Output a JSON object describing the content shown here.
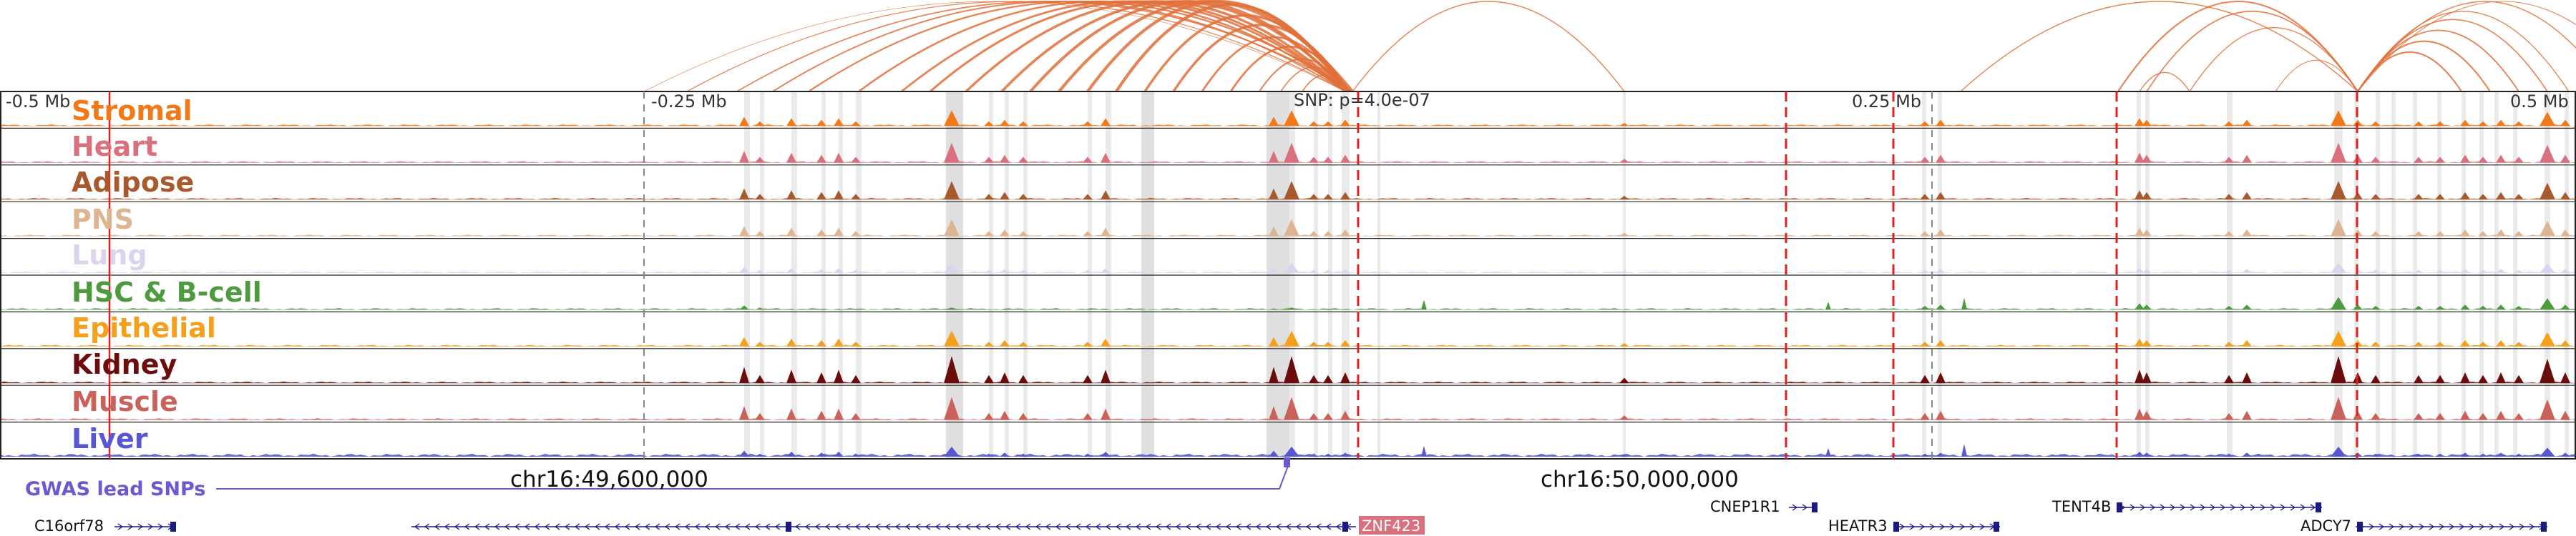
{
  "region": {
    "chromosome": "chr16",
    "axis_labels": [
      "-0.5 Mb",
      "-0.25 Mb",
      "0.25 Mb",
      "0.5 Mb"
    ],
    "chrom_positions": [
      "chr16:49,600,000",
      "chr16:50,000,000"
    ],
    "snp_label": "SNP: p=4.0e-07"
  },
  "tracks": [
    {
      "label": "Stromal",
      "color": "#f07a1a"
    },
    {
      "label": "Heart",
      "color": "#d9707e"
    },
    {
      "label": "Adipose",
      "color": "#a65a2e"
    },
    {
      "label": "PNS",
      "color": "#ddb593"
    },
    {
      "label": "Lung",
      "color": "#dcd4ee"
    },
    {
      "label": "HSC & B-cell",
      "color": "#4e9a3f"
    },
    {
      "label": "Epithelial",
      "color": "#f4a01c"
    },
    {
      "label": "Kidney",
      "color": "#6b0d0d"
    },
    {
      "label": "Muscle",
      "color": "#c9625a"
    },
    {
      "label": "Liver",
      "color": "#5757d6"
    }
  ],
  "gwas": {
    "label": "GWAS lead SNPs",
    "color": "#6a5acd"
  },
  "genes": [
    {
      "name": "C16orf78",
      "highlight": false
    },
    {
      "name": "ZNF423",
      "highlight": true,
      "highlight_color": "#d9707e"
    },
    {
      "name": "CNEP1R1",
      "highlight": false
    },
    {
      "name": "HEATR3",
      "highlight": false
    },
    {
      "name": "TENT4B",
      "highlight": false
    },
    {
      "name": "ADCY7",
      "highlight": false
    }
  ],
  "colors": {
    "loop": "#e0703a",
    "marker": "#e02020",
    "gene_line": "#1a1a80",
    "grey_band": "#d9d9d9"
  }
}
